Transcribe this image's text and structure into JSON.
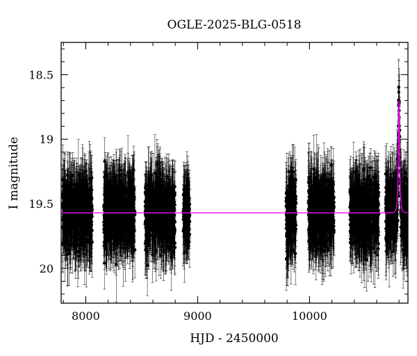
{
  "chart_data": {
    "type": "scatter",
    "title": "OGLE-2025-BLG-0518",
    "xlabel": "HJD - 2450000",
    "ylabel": "I magnitude",
    "xlim": [
      7780,
      10880
    ],
    "ylim": [
      20.27,
      18.25
    ],
    "y_axis_inverted": true,
    "x_ticks": [
      8000,
      9000,
      10000
    ],
    "y_ticks": [
      18.5,
      19,
      19.5,
      20
    ],
    "x_tick_labels": [
      "8000",
      "9000",
      "10000"
    ],
    "y_tick_labels": [
      "18.5",
      "19",
      "19.5",
      "20"
    ],
    "grid": false,
    "series": [
      {
        "kind": "photometry",
        "color": "#000000",
        "baseline_mag": 19.57,
        "typical_scatter_mag": 0.12,
        "typical_errorbar_mag": 0.2,
        "seasons_hjd": [
          [
            7790,
            8060
          ],
          [
            8160,
            8440
          ],
          [
            8530,
            8800
          ],
          [
            8870,
            8930
          ],
          [
            9790,
            9880
          ],
          [
            9990,
            10220
          ],
          [
            10360,
            10620
          ],
          [
            10680,
            10880
          ]
        ]
      },
      {
        "kind": "model",
        "color": "#ff00ff",
        "baseline_mag": 19.57,
        "peak_hjd": 10800,
        "peak_mag": 18.7,
        "tE_days": 12
      }
    ]
  }
}
